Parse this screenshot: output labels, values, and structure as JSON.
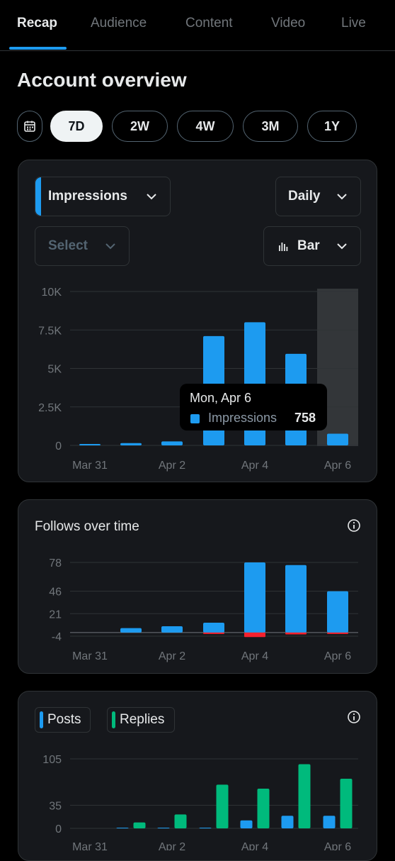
{
  "tabs": [
    {
      "label": "Recap",
      "active": true
    },
    {
      "label": "Audience",
      "active": false
    },
    {
      "label": "Content",
      "active": false
    },
    {
      "label": "Video",
      "active": false
    },
    {
      "label": "Live",
      "active": false
    }
  ],
  "page_title": "Account overview",
  "ranges": [
    {
      "label": "7D",
      "active": true
    },
    {
      "label": "2W",
      "active": false
    },
    {
      "label": "4W",
      "active": false
    },
    {
      "label": "3M",
      "active": false
    },
    {
      "label": "1Y",
      "active": false
    }
  ],
  "impressions_card": {
    "metric_dropdown": "Impressions",
    "interval_dropdown": "Daily",
    "compare_dropdown": "Select",
    "chart_type_dropdown": "Bar",
    "tooltip": {
      "date": "Mon, Apr 6",
      "label": "Impressions",
      "value": "758"
    }
  },
  "follows_card": {
    "title": "Follows over time"
  },
  "posts_card": {
    "legend": [
      {
        "label": "Posts",
        "color": "#1d9bf0"
      },
      {
        "label": "Replies",
        "color": "#00ba7c"
      }
    ]
  },
  "colors": {
    "accent": "#1d9bf0",
    "replies": "#00ba7c",
    "negative": "#f4212e",
    "highlight": "#333639"
  },
  "chart_data": [
    {
      "type": "bar",
      "categories": [
        "Mar 31",
        "Apr 1",
        "Apr 2",
        "Apr 3",
        "Apr 4",
        "Apr 5",
        "Apr 6"
      ],
      "x_tick_labels": [
        "Mar 31",
        "Apr 2",
        "Apr 4",
        "Apr 6"
      ],
      "series": [
        {
          "name": "Impressions",
          "values": [
            60,
            150,
            260,
            7100,
            8000,
            5950,
            758
          ]
        }
      ],
      "y_ticks": [
        "10K",
        "7.5K",
        "5K",
        "2.5K",
        "0"
      ],
      "y_tick_values": [
        10000,
        7500,
        5000,
        2500,
        0
      ],
      "ylim": [
        0,
        10000
      ],
      "highlighted_category": "Apr 6",
      "grid": true
    },
    {
      "type": "bar",
      "categories": [
        "Mar 31",
        "Apr 1",
        "Apr 2",
        "Apr 3",
        "Apr 4",
        "Apr 5",
        "Apr 6"
      ],
      "x_tick_labels": [
        "Mar 31",
        "Apr 2",
        "Apr 4",
        "Apr 6"
      ],
      "series": [
        {
          "values": [
            0,
            5,
            7,
            11,
            78,
            75,
            46
          ]
        },
        {
          "values": [
            0,
            0,
            0,
            -1,
            -5,
            -2,
            -1
          ]
        }
      ],
      "y_ticks": [
        "78",
        "46",
        "21",
        "-4"
      ],
      "y_tick_values": [
        78,
        46,
        21,
        -4
      ],
      "ylim": [
        -4,
        78
      ],
      "grid": true
    },
    {
      "type": "bar",
      "categories": [
        "Mar 31",
        "Apr 1",
        "Apr 2",
        "Apr 3",
        "Apr 4",
        "Apr 5",
        "Apr 6"
      ],
      "x_tick_labels": [
        "Mar 31",
        "Apr 2",
        "Apr 4",
        "Apr 6"
      ],
      "series": [
        {
          "name": "Posts",
          "values": [
            0,
            1,
            1,
            1,
            12,
            19,
            19
          ]
        },
        {
          "name": "Replies",
          "values": [
            0,
            9,
            21,
            66,
            60,
            97,
            75
          ]
        }
      ],
      "y_ticks": [
        "105",
        "35",
        "0"
      ],
      "y_tick_values": [
        105,
        35,
        0
      ],
      "ylim": [
        0,
        105
      ],
      "grid": true
    }
  ]
}
